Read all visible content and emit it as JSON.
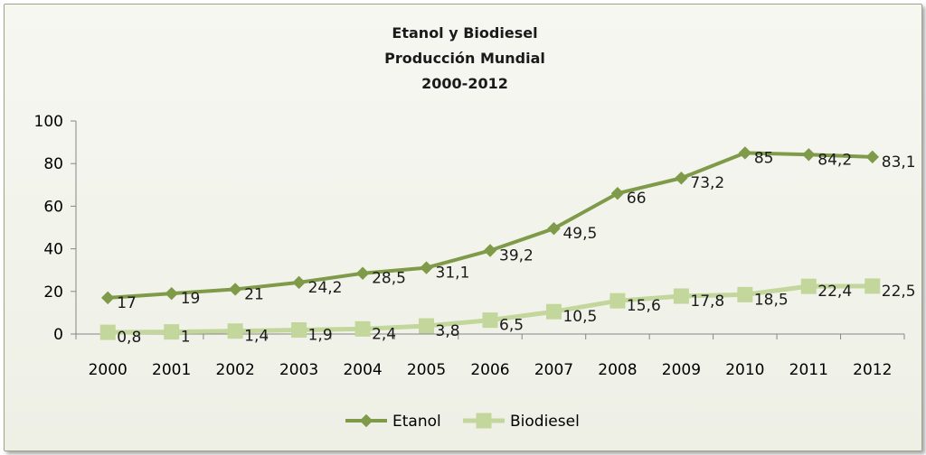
{
  "chart_data": {
    "type": "line",
    "title": [
      "Etanol y Biodiesel",
      "Producción Mundial",
      "2000-2012"
    ],
    "xlabel": "",
    "ylabel": "",
    "categories": [
      "2000",
      "2001",
      "2002",
      "2003",
      "2004",
      "2005",
      "2006",
      "2007",
      "2008",
      "2009",
      "2010",
      "2011",
      "2012"
    ],
    "ylim": [
      0,
      100
    ],
    "yticks": [
      0,
      20,
      40,
      60,
      80,
      100
    ],
    "grid": false,
    "legend_position": "bottom",
    "series": [
      {
        "name": "Etanol",
        "color": "#7f9a48",
        "marker": "diamond",
        "values": [
          17,
          19,
          21,
          24.2,
          28.5,
          31.1,
          39.2,
          49.5,
          66,
          73.2,
          85,
          84.2,
          83.1
        ],
        "labels": [
          "17",
          "19",
          "21",
          "24,2",
          "28,5",
          "31,1",
          "39,2",
          "49,5",
          "66",
          "73,2",
          "85",
          "84,2",
          "83,1"
        ]
      },
      {
        "name": "Biodiesel",
        "color": "#c3d69b",
        "marker": "square",
        "values": [
          0.8,
          1,
          1.4,
          1.9,
          2.4,
          3.8,
          6.5,
          10.5,
          15.6,
          17.8,
          18.5,
          22.4,
          22.5
        ],
        "labels": [
          "0,8",
          "1",
          "1,4",
          "1,9",
          "2,4",
          "3,8",
          "6,5",
          "10,5",
          "15,6",
          "17,8",
          "18,5",
          "22,4",
          "22,5"
        ]
      }
    ]
  }
}
